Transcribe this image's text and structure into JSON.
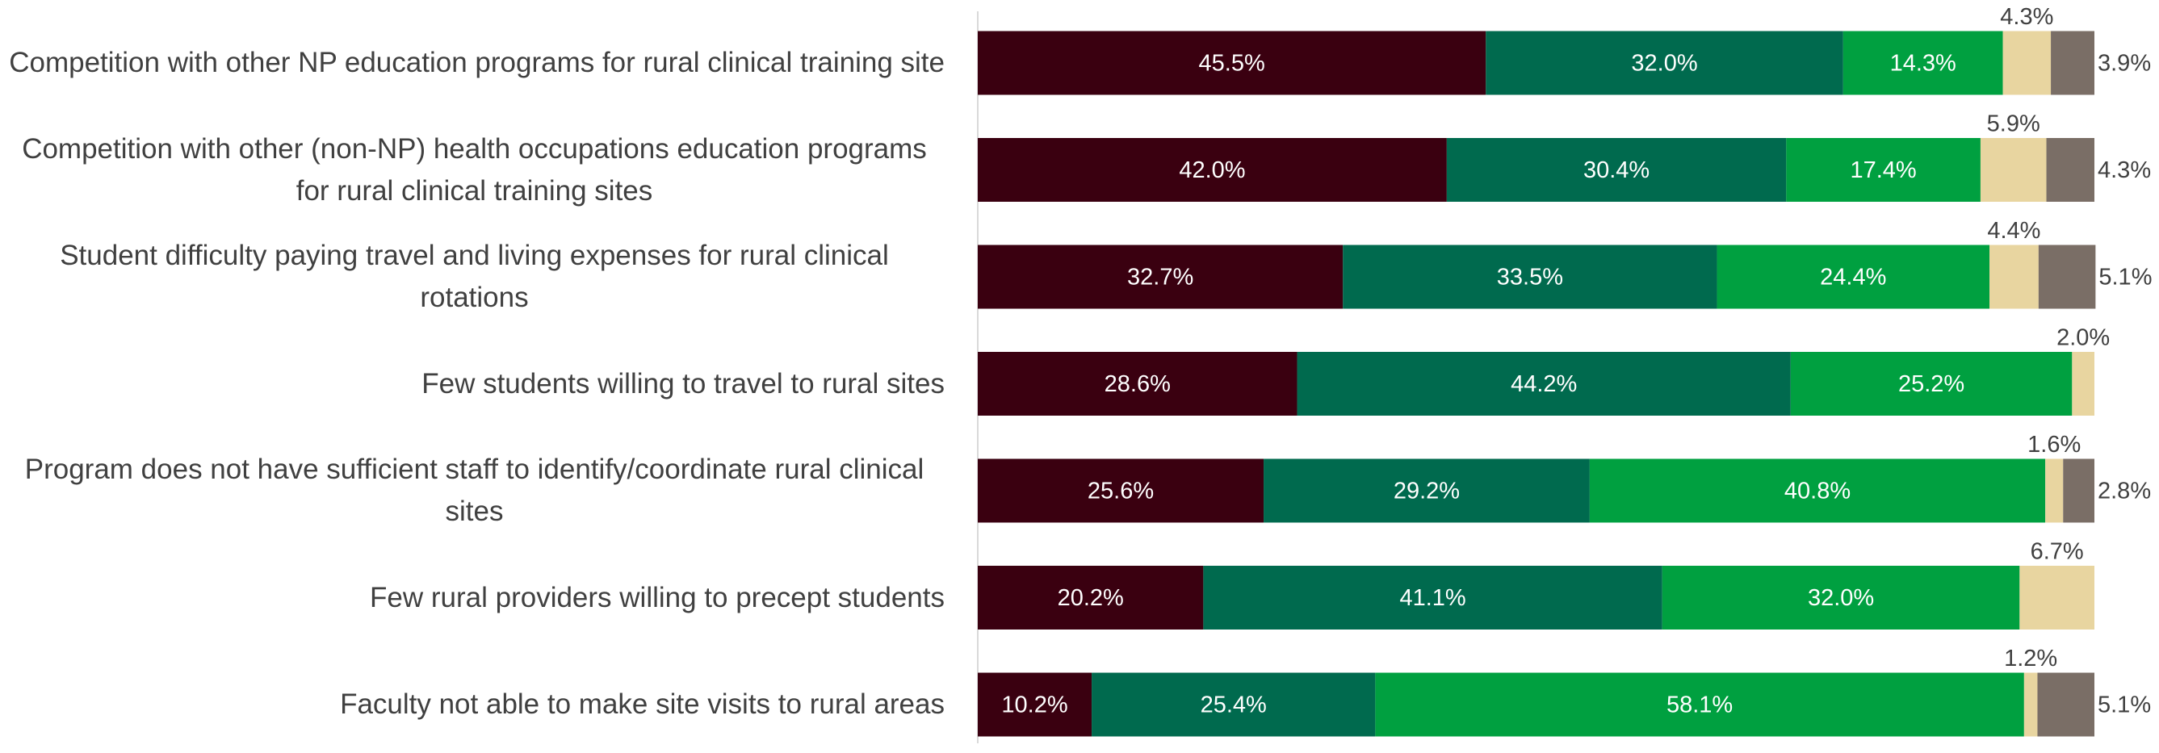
{
  "chart_data": {
    "type": "stacked-bar-horizontal",
    "categories": [
      "Competition with other NP education programs for rural clinical training site",
      "Competition with other (non-NP) health occupations education programs for rural clinical training sites",
      "Student difficulty paying travel and living expenses for rural clinical rotations",
      "Few students willing to travel to rural sites",
      "Program does not have sufficient staff to identify/coordinate rural clinical sites",
      "Few rural providers willing to precept students",
      "Faculty not able to make site visits to rural areas"
    ],
    "series": [
      {
        "color": "#3a0010",
        "values": [
          45.5,
          42.0,
          32.7,
          28.6,
          25.6,
          20.2,
          10.2
        ],
        "value_labels": [
          "45.5%",
          "42.0%",
          "32.7%",
          "28.6%",
          "25.6%",
          "20.2%",
          "10.2%"
        ]
      },
      {
        "color": "#006a4e",
        "values": [
          32.0,
          30.4,
          33.5,
          44.2,
          29.2,
          41.1,
          25.4
        ],
        "value_labels": [
          "32.0%",
          "30.4%",
          "33.5%",
          "44.2%",
          "29.2%",
          "41.1%",
          "25.4%"
        ]
      },
      {
        "color": "#00a040",
        "values": [
          14.3,
          17.4,
          24.4,
          25.2,
          40.8,
          32.0,
          58.1
        ],
        "value_labels": [
          "14.3%",
          "17.4%",
          "24.4%",
          "25.2%",
          "40.8%",
          "32.0%",
          "58.1%"
        ]
      },
      {
        "color": "#e8d5a0",
        "values": [
          4.3,
          5.9,
          4.4,
          2.0,
          1.6,
          6.7,
          1.2
        ],
        "value_labels": [
          "4.3%",
          "5.9%",
          "4.4%",
          "2.0%",
          "1.6%",
          "6.7%",
          "1.2%"
        ]
      },
      {
        "color": "#7a6e66",
        "values": [
          3.9,
          4.3,
          5.1,
          null,
          2.8,
          null,
          5.1
        ],
        "value_labels": [
          "3.9%",
          "4.3%",
          "5.1%",
          null,
          "2.8%",
          null,
          "5.1%"
        ]
      }
    ],
    "xlim": [
      0,
      100
    ]
  }
}
